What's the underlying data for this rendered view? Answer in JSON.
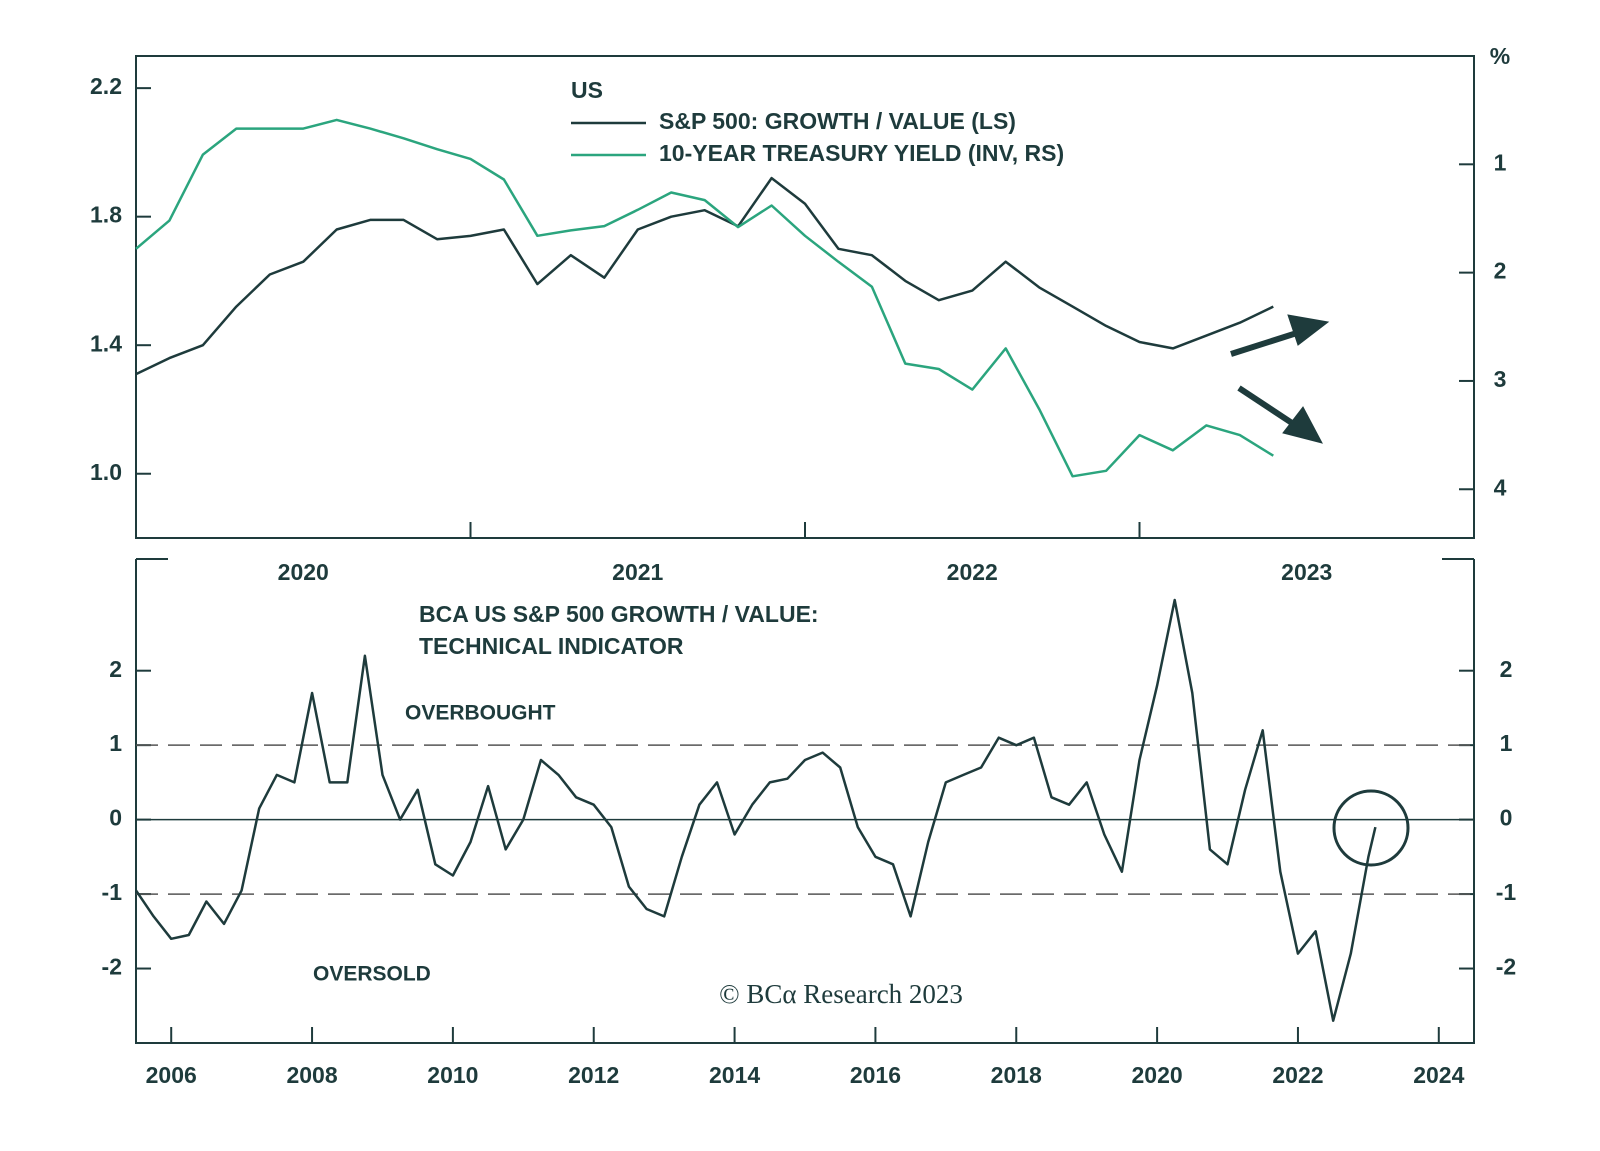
{
  "chart_data": [
    {
      "type": "line",
      "title": "US",
      "x": [
        2020.0,
        2020.1,
        2020.2,
        2020.3,
        2020.4,
        2020.5,
        2020.6,
        2020.7,
        2020.8,
        2020.9,
        2021.0,
        2021.1,
        2021.2,
        2021.3,
        2021.4,
        2021.5,
        2021.6,
        2021.7,
        2021.8,
        2021.9,
        2022.0,
        2022.1,
        2022.2,
        2022.3,
        2022.4,
        2022.5,
        2022.6,
        2022.7,
        2022.8,
        2022.9,
        2023.0,
        2023.1,
        2023.2,
        2023.3,
        2023.4
      ],
      "xlim": [
        2020,
        2024
      ],
      "xticks": [
        2021,
        2022,
        2023
      ],
      "period_labels": [
        "2020",
        "2021",
        "2022",
        "2023"
      ],
      "ylim": [
        0.8,
        2.3
      ],
      "yticks": [
        {
          "value": 1,
          "label": "1.0"
        },
        1.4,
        1.8,
        2.2
      ],
      "y2lim": [
        0,
        4.45
      ],
      "y2ticks": [
        1,
        2,
        3,
        4
      ],
      "y2_inverted": true,
      "y2_unit": "%",
      "series": [
        {
          "name": "S&P 500: GROWTH / VALUE (LS)",
          "color": "#1e3b3c",
          "axis": "y",
          "values": [
            1.31,
            1.36,
            1.4,
            1.52,
            1.62,
            1.66,
            1.76,
            1.79,
            1.79,
            1.73,
            1.74,
            1.76,
            1.59,
            1.68,
            1.61,
            1.76,
            1.8,
            1.82,
            1.77,
            1.92,
            1.84,
            1.7,
            1.68,
            1.6,
            1.54,
            1.57,
            1.66,
            1.58,
            1.52,
            1.46,
            1.41,
            1.39,
            1.43,
            1.47,
            1.52
          ]
        },
        {
          "name": "10-YEAR TREASURY YIELD (INV, RS)",
          "color": "#2ba57e",
          "axis": "y2",
          "values": [
            1.78,
            1.52,
            0.91,
            0.67,
            0.67,
            0.67,
            0.59,
            0.67,
            0.76,
            0.86,
            0.95,
            1.14,
            1.66,
            1.61,
            1.57,
            1.42,
            1.26,
            1.33,
            1.58,
            1.38,
            1.66,
            1.9,
            2.13,
            2.84,
            2.89,
            3.08,
            2.7,
            3.26,
            3.88,
            3.83,
            3.5,
            3.64,
            3.41,
            3.5,
            3.69
          ]
        }
      ]
    },
    {
      "type": "line",
      "title": [
        "BCA US S&P 500 GROWTH / VALUE:",
        "TECHNICAL INDICATOR"
      ],
      "x": [
        2005.5,
        2005.75,
        2006,
        2006.25,
        2006.5,
        2006.75,
        2007,
        2007.25,
        2007.5,
        2007.75,
        2008,
        2008.25,
        2008.5,
        2008.75,
        2009,
        2009.25,
        2009.5,
        2009.75,
        2010,
        2010.25,
        2010.5,
        2010.75,
        2011,
        2011.25,
        2011.5,
        2011.75,
        2012,
        2012.25,
        2012.5,
        2012.75,
        2013,
        2013.25,
        2013.5,
        2013.75,
        2014,
        2014.25,
        2014.5,
        2014.75,
        2015,
        2015.25,
        2015.5,
        2015.75,
        2016,
        2016.25,
        2016.5,
        2016.75,
        2017,
        2017.25,
        2017.5,
        2017.75,
        2018,
        2018.25,
        2018.5,
        2018.75,
        2019,
        2019.25,
        2019.5,
        2019.75,
        2020,
        2020.25,
        2020.5,
        2020.75,
        2021,
        2021.25,
        2021.5,
        2021.75,
        2022,
        2022.25,
        2022.5,
        2022.75,
        2023,
        2023.1
      ],
      "xlim": [
        2005.5,
        2024.5
      ],
      "xticks": [
        2006,
        2008,
        2010,
        2012,
        2014,
        2016,
        2018,
        2020,
        2022,
        2024
      ],
      "ylim": [
        -3,
        3.5
      ],
      "yticks": [
        -2,
        -1,
        0,
        1,
        2
      ],
      "zero_line": true,
      "reference_lines": [
        {
          "value": 1,
          "label": "OVERBOUGHT"
        },
        {
          "value": -1,
          "label": "OVERSOLD"
        }
      ],
      "series": [
        {
          "color": "#1e3b3c",
          "values": [
            -0.95,
            -1.3,
            -1.6,
            -1.55,
            -1.1,
            -1.4,
            -0.95,
            0.15,
            0.6,
            0.5,
            1.7,
            0.5,
            0.5,
            2.2,
            0.6,
            0.0,
            0.4,
            -0.6,
            -0.75,
            -0.3,
            0.45,
            -0.4,
            0.0,
            0.8,
            0.6,
            0.3,
            0.2,
            -0.1,
            -0.9,
            -1.2,
            -1.3,
            -0.5,
            0.2,
            0.5,
            -0.2,
            0.2,
            0.5,
            0.55,
            0.8,
            0.9,
            0.7,
            -0.1,
            -0.5,
            -0.6,
            -1.3,
            -0.3,
            0.5,
            0.6,
            0.7,
            1.1,
            1.0,
            1.1,
            0.3,
            0.2,
            0.5,
            -0.2,
            -0.7,
            0.8,
            1.8,
            2.95,
            1.7,
            -0.4,
            -0.6,
            0.4,
            1.2,
            -0.7,
            -1.8,
            -1.5,
            -2.7,
            -1.8,
            -0.5,
            -0.1
          ]
        }
      ],
      "source": "© BCα Research 2023"
    }
  ]
}
